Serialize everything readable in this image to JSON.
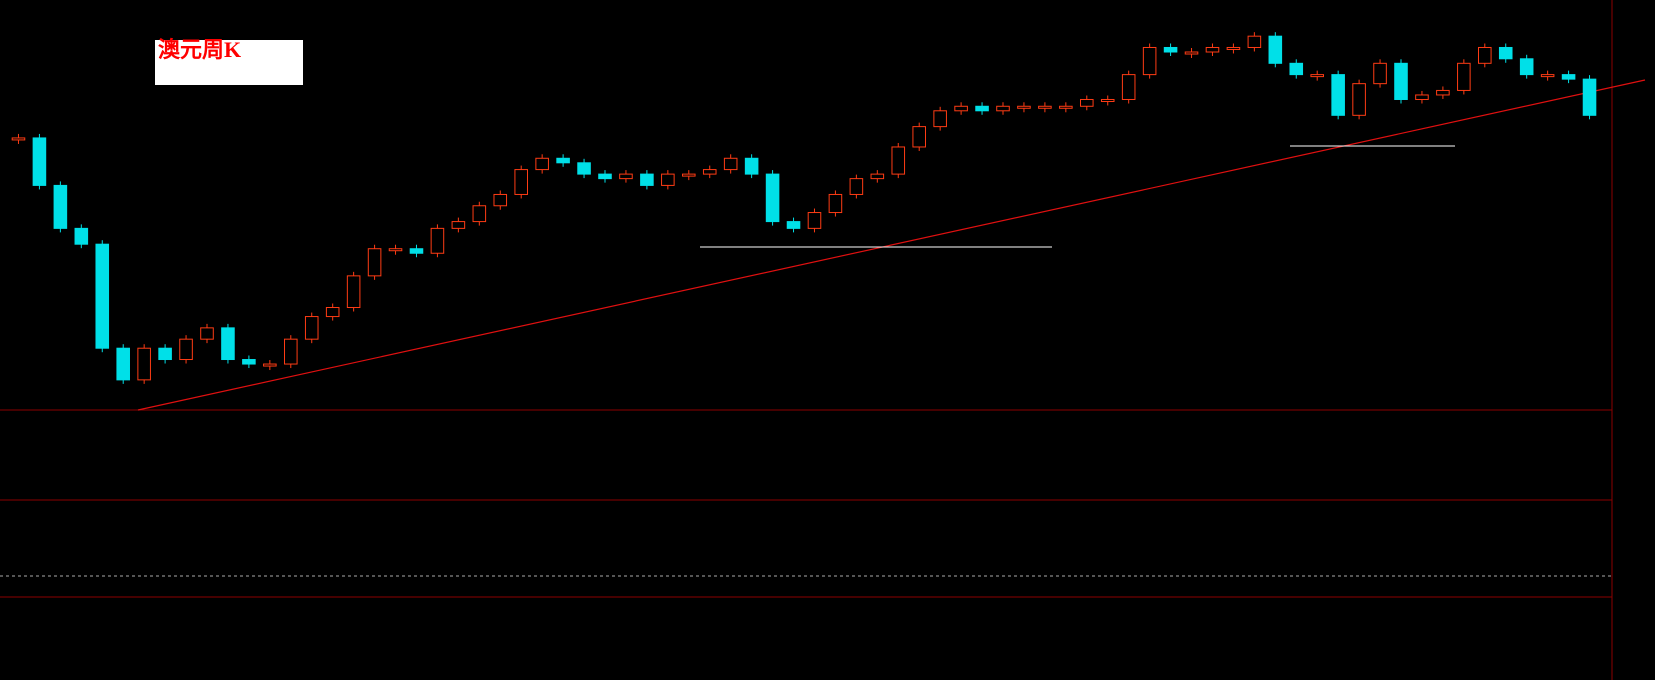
{
  "chart_data": {
    "type": "candlestick",
    "title": "澳元周K",
    "values": [
      1.049,
      1.028,
      1.009,
      1.002,
      0.956,
      0.942,
      0.956,
      0.951,
      0.96,
      0.965,
      0.951,
      0.949,
      0.949,
      0.96,
      0.97,
      0.974,
      0.988,
      1.0,
      1.0,
      0.998,
      1.009,
      1.012,
      1.019,
      1.024,
      1.035,
      1.04,
      1.038,
      1.033,
      1.031,
      1.033,
      1.028,
      1.033,
      1.033,
      1.035,
      1.04,
      1.033,
      1.012,
      1.009,
      1.016,
      1.024,
      1.031,
      1.033,
      1.045,
      1.054,
      1.061,
      1.063,
      1.061,
      1.063,
      1.063,
      1.063,
      1.063,
      1.066,
      1.066,
      1.077,
      1.089,
      1.087,
      1.087,
      1.089,
      1.089,
      1.094,
      1.082,
      1.077,
      1.077,
      1.059,
      1.073,
      1.082,
      1.066,
      1.068,
      1.07,
      1.082,
      1.089,
      1.084,
      1.077,
      1.077,
      1.075,
      1.059
    ],
    "ylim": [
      0.93,
      1.11
    ],
    "up_color": "#ff3c14",
    "down_color": "#00e0e8"
  }
}
